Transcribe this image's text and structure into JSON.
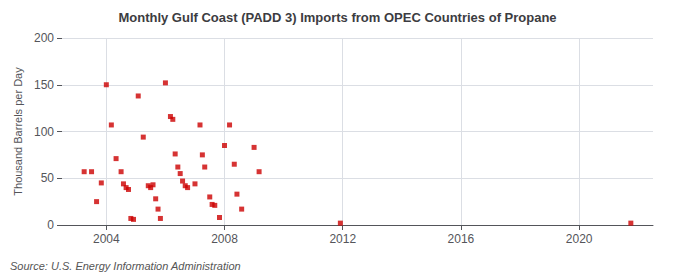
{
  "chart_data": {
    "type": "scatter",
    "title": "Monthly Gulf Coast (PADD 3) Imports from OPEC Countries of Propane",
    "ylabel": "Thousand Barrels per Day",
    "annotations": [
      "Source: U.S. Energy Information Administration"
    ],
    "x": [
      2003.25,
      2003.5,
      2003.67,
      2003.83,
      2004.0,
      2004.17,
      2004.33,
      2004.5,
      2004.58,
      2004.67,
      2004.75,
      2004.83,
      2004.92,
      2005.08,
      2005.25,
      2005.42,
      2005.5,
      2005.58,
      2005.67,
      2005.75,
      2005.83,
      2006.0,
      2006.17,
      2006.25,
      2006.33,
      2006.42,
      2006.5,
      2006.58,
      2006.67,
      2006.75,
      2007.0,
      2007.17,
      2007.25,
      2007.33,
      2007.5,
      2007.58,
      2007.67,
      2007.83,
      2008.0,
      2008.17,
      2008.33,
      2008.42,
      2008.58,
      2009.0,
      2009.17,
      2011.92,
      2021.75
    ],
    "values": [
      57,
      57,
      25,
      45,
      150,
      107,
      71,
      57,
      44,
      40,
      38,
      7,
      6,
      138,
      94,
      42,
      40,
      43,
      28,
      17,
      7,
      152,
      116,
      113,
      76,
      62,
      55,
      47,
      42,
      40,
      44,
      107,
      75,
      62,
      30,
      22,
      21,
      8,
      85,
      107,
      65,
      33,
      17,
      83,
      57,
      2,
      2
    ],
    "color": "#cc0000",
    "marker": "square",
    "xlim": [
      2002.5,
      2022.5
    ],
    "xticks": [
      2004,
      2008,
      2012,
      2016,
      2020
    ],
    "ylim": [
      0,
      200
    ],
    "yticks": [
      0,
      50,
      100,
      150,
      200
    ],
    "grid": true
  }
}
